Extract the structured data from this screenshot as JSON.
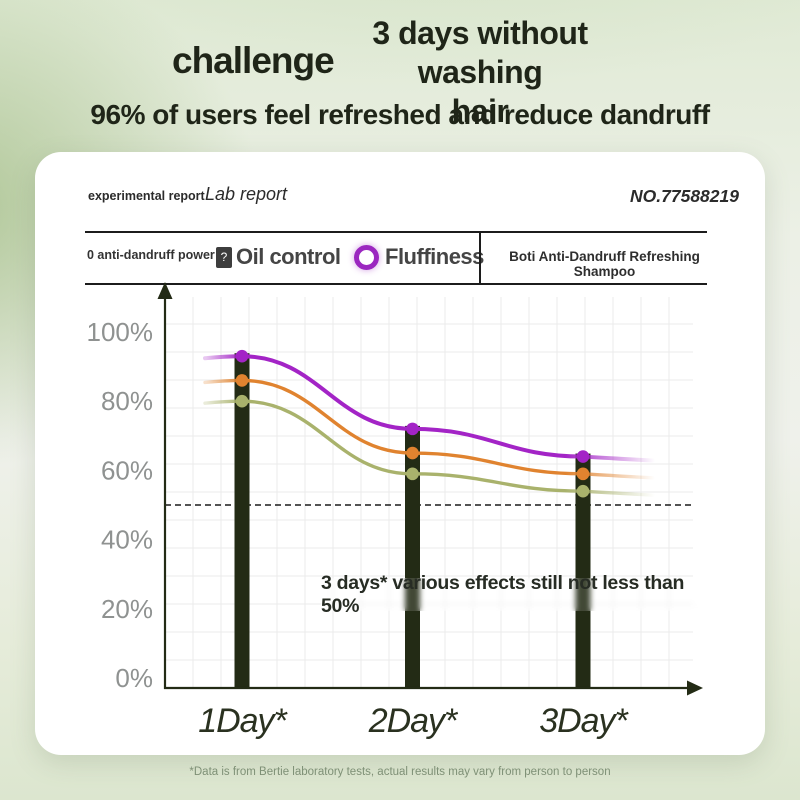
{
  "header": {
    "challenge": "challenge",
    "title_top": "3 days without washing",
    "title_bottom": "hair",
    "subtitle": "96% of users feel refreshed and reduce dandruff"
  },
  "report": {
    "label": "experimental report",
    "title": "Lab report",
    "number": "NO.77588219"
  },
  "legend": {
    "item_antidandruff": "0 anti-dandruff power",
    "item_oilcontrol": "Oil control",
    "item_fluffiness": "Fluffiness",
    "marker_glyph": "?",
    "marker_ring_color": "#9b27c0",
    "product": "Boti Anti-Dandruff Refreshing Shampoo"
  },
  "chart_data": {
    "type": "line",
    "title": "",
    "xlabel": "",
    "ylabel": "",
    "categories": [
      "1Day*",
      "2Day*",
      "3Day*"
    ],
    "series": [
      {
        "name": "Fluffiness",
        "color": "#a324c6",
        "values": [
          93,
          72,
          64
        ]
      },
      {
        "name": "Oil control",
        "color": "#e0832f",
        "values": [
          86,
          65,
          59
        ]
      },
      {
        "name": "Anti-dandruff power",
        "color": "#a9b26c",
        "values": [
          80,
          59,
          54
        ]
      }
    ],
    "bars": {
      "color": "#232b15",
      "values": [
        93,
        72,
        64
      ]
    },
    "reference_line": {
      "value": 50,
      "style": "dashed",
      "color": "#1a1a1a"
    },
    "yticks": [
      {
        "label": "100%",
        "value": 100
      },
      {
        "label": "80%",
        "value": 80
      },
      {
        "label": "60%",
        "value": 60
      },
      {
        "label": "40%",
        "value": 40
      },
      {
        "label": "20%",
        "value": 20
      },
      {
        "label": "0%",
        "value": 0
      }
    ],
    "ylim": [
      0,
      100
    ],
    "grid": true,
    "legend_position": "top",
    "annotation": "3 days* various effects still not less than 50%"
  },
  "footer": "*Data is from Bertie laboratory tests, actual results may vary from person to person"
}
